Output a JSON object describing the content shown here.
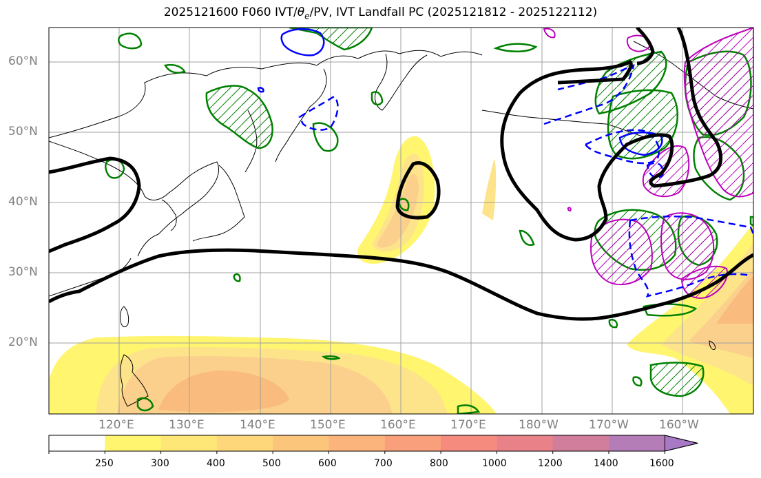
{
  "title": {
    "pre": "2025121600 F060 IVT/",
    "theta": "θ",
    "sub": "e",
    "post": "/PV, IVT Landfall PC (2025121812 - 2025122112)"
  },
  "map": {
    "lon_range": [
      110,
      210
    ],
    "lat_range": [
      10,
      65
    ],
    "lat_labels": [
      {
        "lat": 60,
        "text": "60°N"
      },
      {
        "lat": 50,
        "text": "50°N"
      },
      {
        "lat": 40,
        "text": "40°N"
      },
      {
        "lat": 30,
        "text": "30°N"
      },
      {
        "lat": 20,
        "text": "20°N"
      }
    ],
    "lon_labels": [
      {
        "lon": 120,
        "text": "120°E"
      },
      {
        "lon": 130,
        "text": "130°E"
      },
      {
        "lon": 140,
        "text": "140°E"
      },
      {
        "lon": 150,
        "text": "150°E"
      },
      {
        "lon": 160,
        "text": "160°E"
      },
      {
        "lon": 170,
        "text": "170°E"
      },
      {
        "lon": 180,
        "text": "180°W"
      },
      {
        "lon": 190,
        "text": "170°W"
      },
      {
        "lon": 200,
        "text": "160°W"
      }
    ],
    "colors": {
      "ivt_fill_250": "#fff57a",
      "ivt_fill_300": "#fde48a",
      "ivt_fill_400": "#fbd08c",
      "ivt_fill_500": "#f9bc7e",
      "theta_contour": "#000000",
      "pv_contour": "#008000",
      "positive_pc": "#bb00bb",
      "negative_pc": "#0000ff"
    }
  },
  "colorbar": {
    "levels": [
      "250",
      "300",
      "400",
      "500",
      "600",
      "700",
      "800",
      "1000",
      "1200",
      "1400",
      "1600"
    ],
    "colors": [
      "#ffffff",
      "#fff56f",
      "#fee776",
      "#fdd77a",
      "#fcc57c",
      "#fbb57c",
      "#fa9f7c",
      "#f58a7e",
      "#e88288",
      "#d07e9c",
      "#b47db8"
    ],
    "extend_color": "#a87ac6"
  }
}
